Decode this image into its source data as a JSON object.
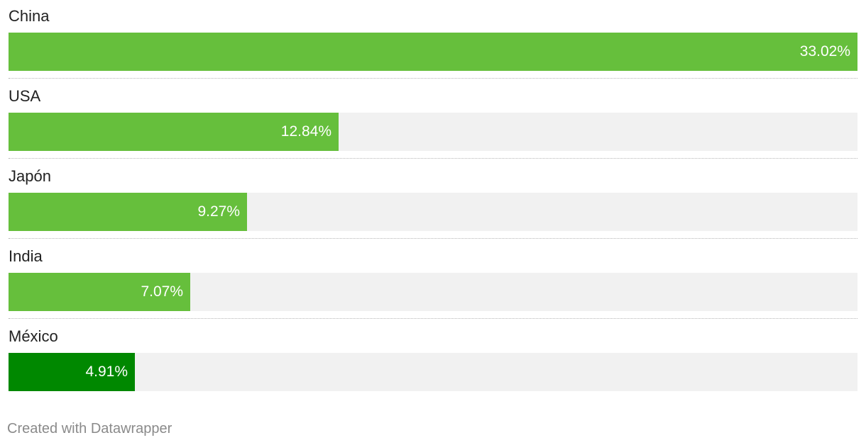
{
  "chart_data": {
    "type": "bar",
    "orientation": "horizontal",
    "categories": [
      "China",
      "USA",
      "Japón",
      "India",
      "México"
    ],
    "values": [
      33.02,
      12.84,
      9.27,
      7.07,
      4.91
    ],
    "value_labels": [
      "33.02%",
      "12.84%",
      "9.27%",
      "7.07%",
      "4.91%"
    ],
    "xlim": [
      0,
      33.02
    ],
    "grid": false,
    "colors": {
      "bar": "#66bf3c",
      "highlight": "#008800",
      "track": "#f1f1f1",
      "value_text": "#ffffff"
    },
    "highlighted_category": "México"
  },
  "footer": {
    "credit": "Created with Datawrapper"
  }
}
